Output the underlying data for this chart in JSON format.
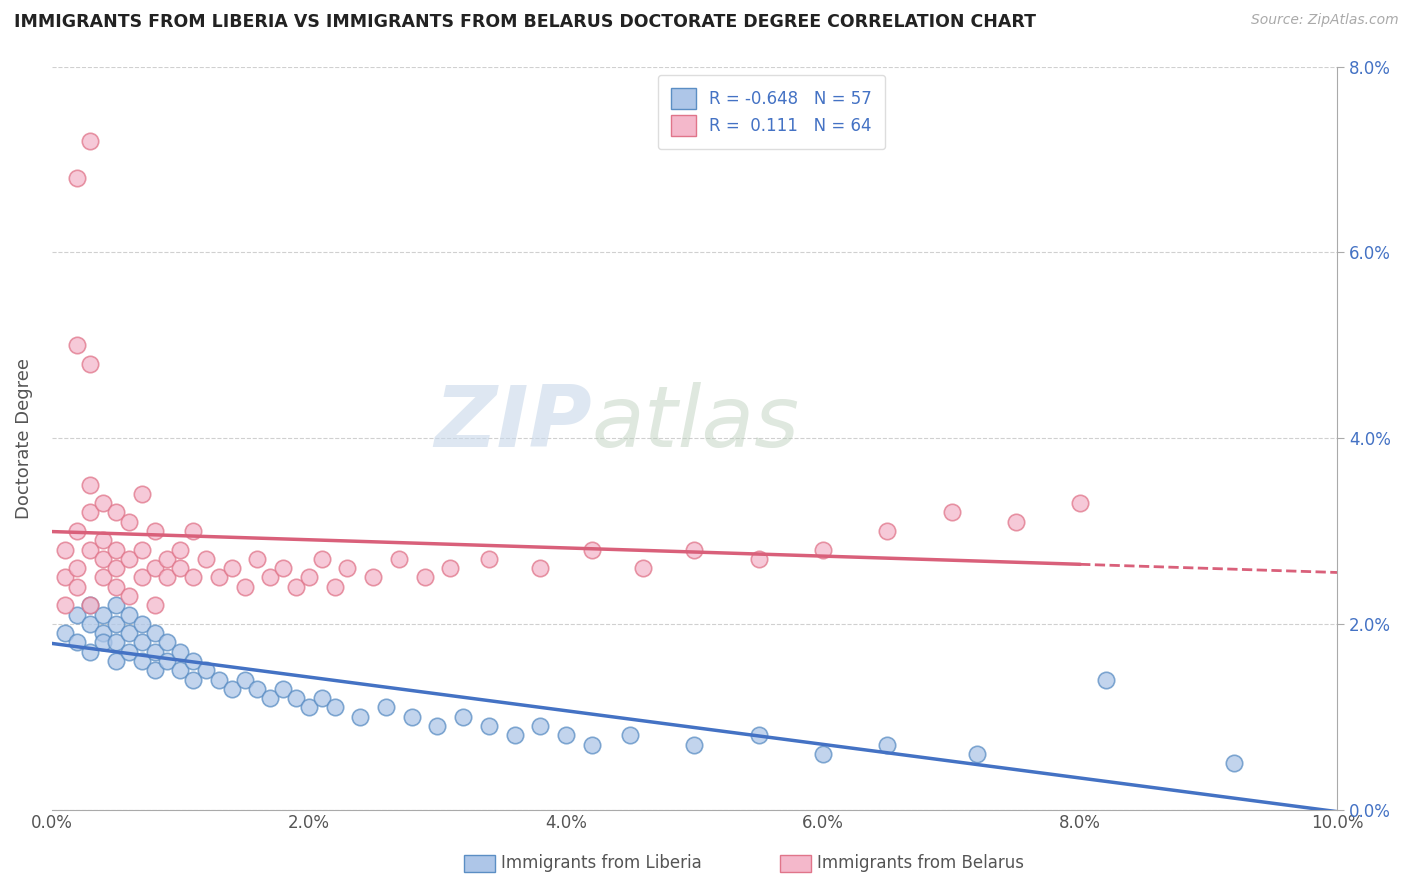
{
  "title": "IMMIGRANTS FROM LIBERIA VS IMMIGRANTS FROM BELARUS DOCTORATE DEGREE CORRELATION CHART",
  "source": "Source: ZipAtlas.com",
  "ylabel": "Doctorate Degree",
  "xlim": [
    0.0,
    0.1
  ],
  "ylim": [
    0.0,
    0.08
  ],
  "x_ticks": [
    0.0,
    0.02,
    0.04,
    0.06,
    0.08,
    0.1
  ],
  "y_ticks": [
    0.0,
    0.02,
    0.04,
    0.06,
    0.08
  ],
  "liberia_R": -0.648,
  "liberia_N": 57,
  "belarus_R": 0.111,
  "belarus_N": 64,
  "liberia_color": "#aec6e8",
  "belarus_color": "#f4b8cb",
  "liberia_edge_color": "#5b8ec4",
  "belarus_edge_color": "#e0758a",
  "liberia_line_color": "#4472c4",
  "belarus_line_color": "#d9607a",
  "watermark_zip": "ZIP",
  "watermark_atlas": "atlas",
  "background_color": "#ffffff",
  "grid_color": "#d0d0d0",
  "liberia_x": [
    0.001,
    0.002,
    0.002,
    0.003,
    0.003,
    0.003,
    0.004,
    0.004,
    0.004,
    0.005,
    0.005,
    0.005,
    0.005,
    0.006,
    0.006,
    0.006,
    0.007,
    0.007,
    0.007,
    0.008,
    0.008,
    0.008,
    0.009,
    0.009,
    0.01,
    0.01,
    0.011,
    0.011,
    0.012,
    0.013,
    0.014,
    0.015,
    0.016,
    0.017,
    0.018,
    0.019,
    0.02,
    0.021,
    0.022,
    0.024,
    0.026,
    0.028,
    0.03,
    0.032,
    0.034,
    0.036,
    0.038,
    0.04,
    0.042,
    0.045,
    0.05,
    0.055,
    0.06,
    0.065,
    0.072,
    0.082,
    0.092
  ],
  "liberia_y": [
    0.019,
    0.021,
    0.018,
    0.02,
    0.022,
    0.017,
    0.021,
    0.019,
    0.018,
    0.02,
    0.022,
    0.018,
    0.016,
    0.019,
    0.021,
    0.017,
    0.02,
    0.018,
    0.016,
    0.019,
    0.017,
    0.015,
    0.018,
    0.016,
    0.017,
    0.015,
    0.016,
    0.014,
    0.015,
    0.014,
    0.013,
    0.014,
    0.013,
    0.012,
    0.013,
    0.012,
    0.011,
    0.012,
    0.011,
    0.01,
    0.011,
    0.01,
    0.009,
    0.01,
    0.009,
    0.008,
    0.009,
    0.008,
    0.007,
    0.008,
    0.007,
    0.008,
    0.006,
    0.007,
    0.006,
    0.014,
    0.005
  ],
  "belarus_x": [
    0.001,
    0.001,
    0.001,
    0.002,
    0.002,
    0.002,
    0.003,
    0.003,
    0.003,
    0.003,
    0.004,
    0.004,
    0.004,
    0.004,
    0.005,
    0.005,
    0.005,
    0.005,
    0.006,
    0.006,
    0.006,
    0.007,
    0.007,
    0.007,
    0.008,
    0.008,
    0.008,
    0.009,
    0.009,
    0.01,
    0.01,
    0.011,
    0.011,
    0.012,
    0.013,
    0.014,
    0.015,
    0.016,
    0.017,
    0.018,
    0.019,
    0.02,
    0.021,
    0.022,
    0.023,
    0.025,
    0.027,
    0.029,
    0.031,
    0.034,
    0.038,
    0.042,
    0.046,
    0.05,
    0.055,
    0.06,
    0.065,
    0.07,
    0.075,
    0.08,
    0.002,
    0.003,
    0.002,
    0.003
  ],
  "belarus_y": [
    0.025,
    0.028,
    0.022,
    0.026,
    0.03,
    0.024,
    0.028,
    0.032,
    0.022,
    0.035,
    0.027,
    0.033,
    0.025,
    0.029,
    0.028,
    0.024,
    0.032,
    0.026,
    0.027,
    0.031,
    0.023,
    0.034,
    0.028,
    0.025,
    0.026,
    0.03,
    0.022,
    0.027,
    0.025,
    0.026,
    0.028,
    0.025,
    0.03,
    0.027,
    0.025,
    0.026,
    0.024,
    0.027,
    0.025,
    0.026,
    0.024,
    0.025,
    0.027,
    0.024,
    0.026,
    0.025,
    0.027,
    0.025,
    0.026,
    0.027,
    0.026,
    0.028,
    0.026,
    0.028,
    0.027,
    0.028,
    0.03,
    0.032,
    0.031,
    0.033,
    0.068,
    0.072,
    0.05,
    0.048
  ]
}
